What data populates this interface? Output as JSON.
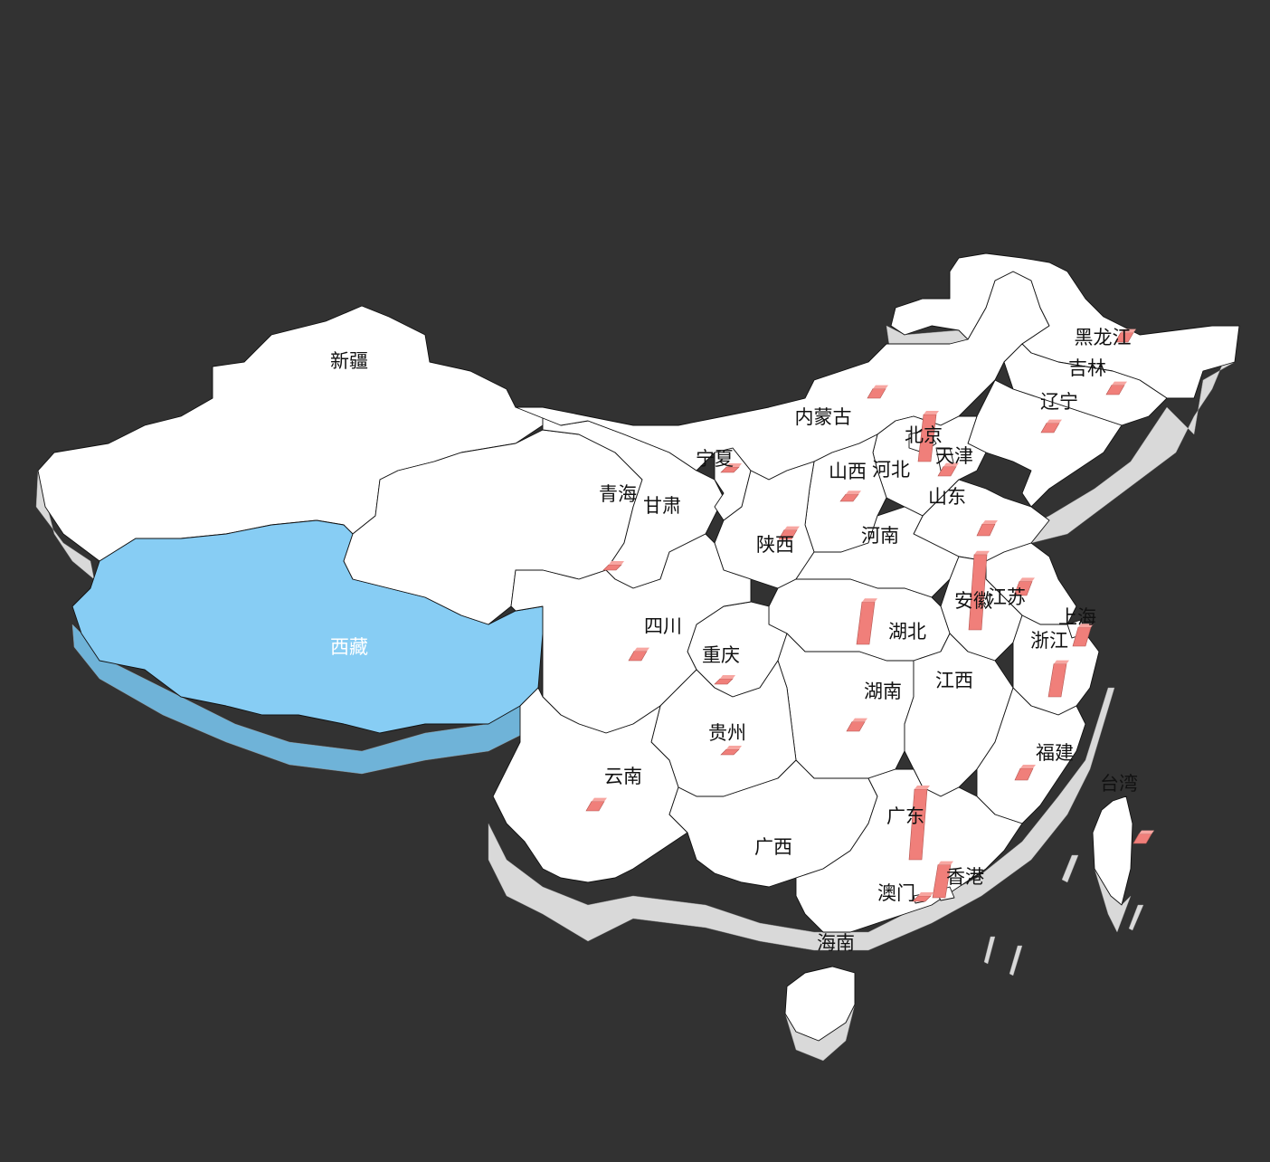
{
  "map": {
    "highlight_color": "#87cdf4",
    "land_color": "#ffffff",
    "bar_color": "#f07f7a",
    "background": "#323232"
  },
  "chart_data": {
    "type": "map3d",
    "regions": [
      {
        "name": "新疆"
      },
      {
        "name": "西藏",
        "selected": true
      },
      {
        "name": "青海",
        "value": 2
      },
      {
        "name": "甘肃"
      },
      {
        "name": "宁夏",
        "value": 1
      },
      {
        "name": "内蒙古",
        "value": 4
      },
      {
        "name": "黑龙江",
        "value": 4
      },
      {
        "name": "吉林",
        "value": 4
      },
      {
        "name": "辽宁",
        "value": 4
      },
      {
        "name": "北京",
        "value": 20
      },
      {
        "name": "天津",
        "value": 4
      },
      {
        "name": "河北"
      },
      {
        "name": "山西",
        "value": 3
      },
      {
        "name": "山东",
        "value": 5
      },
      {
        "name": "陕西",
        "value": 4
      },
      {
        "name": "河南"
      },
      {
        "name": "江苏",
        "value": 6
      },
      {
        "name": "安徽",
        "value": 32
      },
      {
        "name": "上海",
        "value": 8
      },
      {
        "name": "浙江",
        "value": 14
      },
      {
        "name": "湖北",
        "value": 18
      },
      {
        "name": "四川",
        "value": 4
      },
      {
        "name": "重庆",
        "value": 2
      },
      {
        "name": "湖南",
        "value": 4
      },
      {
        "name": "江西"
      },
      {
        "name": "贵州",
        "value": 2
      },
      {
        "name": "云南",
        "value": 4
      },
      {
        "name": "福建",
        "value": 5
      },
      {
        "name": "台湾",
        "value": 4
      },
      {
        "name": "广西"
      },
      {
        "name": "广东",
        "value": 30
      },
      {
        "name": "香港",
        "value": 14
      },
      {
        "name": "澳门",
        "value": 2
      },
      {
        "name": "海南"
      }
    ]
  }
}
